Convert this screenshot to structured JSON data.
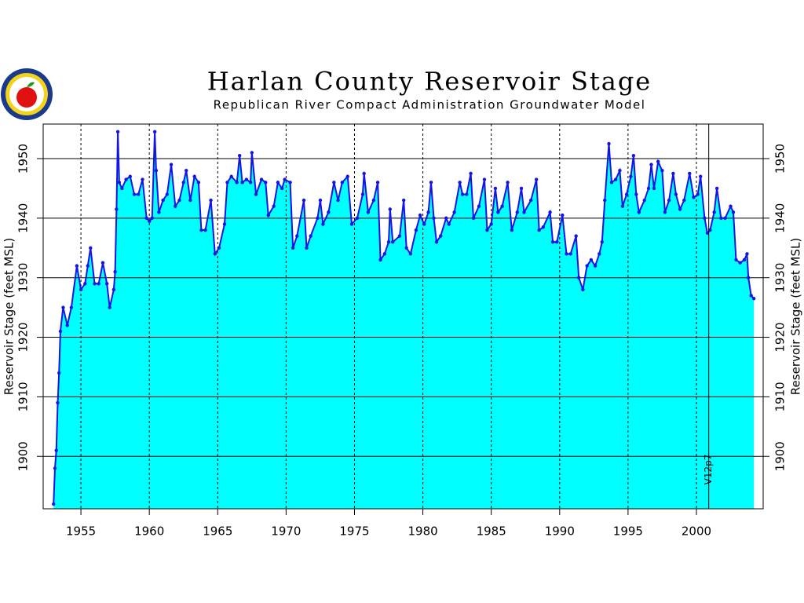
{
  "chart_data": {
    "type": "area",
    "title": "Harlan County Reservoir Stage",
    "subtitle": "Republican River Compact Administration Groundwater Model",
    "y_label": "Reservoir Stage (feet MSL)",
    "annotation": {
      "text": "V12p7",
      "x": 2000.9
    },
    "line_color": "#1414e6",
    "fill_color": "#00ffff",
    "grid": true,
    "xlim": [
      1952.24,
      2004.88
    ],
    "ylim": [
      1891.2,
      1955.8
    ],
    "xticks": [
      1955,
      1960,
      1965,
      1970,
      1975,
      1980,
      1985,
      1990,
      1995,
      2000
    ],
    "yticks": [
      1900,
      1910,
      1920,
      1930,
      1940,
      1950
    ],
    "x": [
      1953.0,
      1953.1,
      1953.2,
      1953.3,
      1953.4,
      1953.5,
      1953.7,
      1954.0,
      1954.3,
      1954.7,
      1955.0,
      1955.3,
      1955.5,
      1955.7,
      1956.0,
      1956.3,
      1956.6,
      1956.9,
      1957.1,
      1957.4,
      1957.5,
      1957.6,
      1957.7,
      1957.8,
      1958.0,
      1958.3,
      1958.6,
      1958.9,
      1959.2,
      1959.5,
      1959.8,
      1960.0,
      1960.2,
      1960.4,
      1960.5,
      1960.7,
      1961.0,
      1961.3,
      1961.6,
      1961.9,
      1962.2,
      1962.5,
      1962.7,
      1963.0,
      1963.3,
      1963.6,
      1963.8,
      1964.1,
      1964.5,
      1964.8,
      1965.1,
      1965.5,
      1965.7,
      1966.0,
      1966.4,
      1966.6,
      1966.8,
      1967.1,
      1967.4,
      1967.5,
      1967.8,
      1968.2,
      1968.5,
      1968.7,
      1969.1,
      1969.4,
      1969.7,
      1969.9,
      1970.3,
      1970.5,
      1970.8,
      1971.3,
      1971.5,
      1971.8,
      1972.3,
      1972.5,
      1972.7,
      1973.1,
      1973.5,
      1973.8,
      1974.1,
      1974.5,
      1974.8,
      1975.2,
      1975.6,
      1975.7,
      1976.0,
      1976.4,
      1976.7,
      1976.9,
      1977.2,
      1977.5,
      1977.6,
      1977.8,
      1978.3,
      1978.6,
      1978.8,
      1979.1,
      1979.5,
      1979.8,
      1980.1,
      1980.4,
      1980.6,
      1980.8,
      1981.0,
      1981.3,
      1981.7,
      1981.9,
      1982.3,
      1982.7,
      1982.9,
      1983.2,
      1983.5,
      1983.7,
      1984.1,
      1984.5,
      1984.7,
      1985.0,
      1985.3,
      1985.5,
      1985.8,
      1986.2,
      1986.5,
      1986.9,
      1987.2,
      1987.4,
      1987.9,
      1988.3,
      1988.5,
      1988.8,
      1989.3,
      1989.5,
      1989.8,
      1990.2,
      1990.5,
      1990.8,
      1991.2,
      1991.4,
      1991.7,
      1992.0,
      1992.3,
      1992.6,
      1992.9,
      1993.1,
      1993.3,
      1993.6,
      1993.8,
      1994.1,
      1994.4,
      1994.6,
      1994.9,
      1995.2,
      1995.4,
      1995.6,
      1995.8,
      1996.2,
      1996.5,
      1996.7,
      1996.9,
      1997.2,
      1997.5,
      1997.7,
      1998.0,
      1998.3,
      1998.5,
      1998.8,
      1999.1,
      1999.5,
      1999.8,
      2000.1,
      2000.3,
      2000.6,
      2000.8,
      2001.0,
      2001.3,
      2001.5,
      2001.8,
      2002.1,
      2002.5,
      2002.7,
      2002.9,
      2003.2,
      2003.5,
      2003.7,
      2003.8,
      2004.0,
      2004.2
    ],
    "values": [
      1892,
      1898,
      1901,
      1909,
      1914,
      1921,
      1925,
      1922,
      1925,
      1932,
      1928,
      1929,
      1932,
      1935,
      1929,
      1929,
      1932.5,
      1929,
      1925,
      1928,
      1931,
      1941.5,
      1954.5,
      1946,
      1945,
      1946.5,
      1947,
      1944,
      1944,
      1946.5,
      1940,
      1939.5,
      1940,
      1954.5,
      1948,
      1941,
      1943,
      1944,
      1949,
      1942,
      1943,
      1946,
      1948,
      1943,
      1947,
      1946,
      1938,
      1938,
      1943,
      1934,
      1935,
      1939,
      1946,
      1947,
      1946,
      1950.5,
      1946,
      1946.5,
      1946,
      1951,
      1944,
      1946.5,
      1946,
      1940.5,
      1942,
      1946,
      1945,
      1946.5,
      1946,
      1935,
      1937,
      1943,
      1935,
      1937,
      1940,
      1943,
      1939,
      1941,
      1946,
      1943,
      1946,
      1947,
      1939,
      1940,
      1944,
      1947.5,
      1941,
      1943,
      1946,
      1933,
      1934,
      1936,
      1941.5,
      1936,
      1937,
      1943,
      1935,
      1934,
      1938,
      1940.5,
      1939,
      1941,
      1946,
      1940,
      1936,
      1937,
      1940,
      1939,
      1941,
      1946,
      1944,
      1944,
      1947.5,
      1940,
      1942,
      1946.5,
      1938,
      1939,
      1945,
      1941,
      1942,
      1946,
      1938,
      1941,
      1945,
      1941,
      1943,
      1946.5,
      1938,
      1938.5,
      1941,
      1936,
      1936,
      1940.5,
      1934,
      1934,
      1937,
      1930,
      1928,
      1932,
      1933,
      1932,
      1934,
      1936,
      1943,
      1952.5,
      1946,
      1946.5,
      1948,
      1942,
      1944,
      1947,
      1950.5,
      1944,
      1941,
      1943,
      1945,
      1949,
      1945,
      1949.5,
      1948,
      1941,
      1943,
      1947.5,
      1944,
      1941.5,
      1943,
      1947.5,
      1943.5,
      1944,
      1947,
      1940,
      1937.5,
      1938,
      1941,
      1945,
      1940,
      1940,
      1942,
      1941,
      1933,
      1932.5,
      1933,
      1934,
      1930,
      1927,
      1926.5
    ]
  }
}
